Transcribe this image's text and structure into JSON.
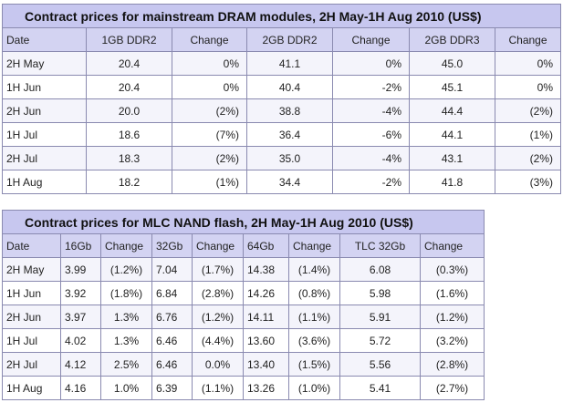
{
  "dram": {
    "title": "Contract prices for mainstream DRAM modules, 2H May-1H Aug 2010 (US$)",
    "headers": [
      "Date",
      "1GB DDR2",
      "Change",
      "2GB DDR2",
      "Change",
      "2GB DDR3",
      "Change"
    ],
    "rows": [
      [
        "2H May",
        "20.4",
        "0%",
        "41.1",
        "0%",
        "45.0",
        "0%"
      ],
      [
        "1H Jun",
        "20.4",
        "0%",
        "40.4",
        "-2%",
        "45.1",
        "0%"
      ],
      [
        "2H Jun",
        "20.0",
        "(2%)",
        "38.8",
        "-4%",
        "44.4",
        "(2%)"
      ],
      [
        "1H Jul",
        "18.6",
        "(7%)",
        "36.4",
        "-6%",
        "44.1",
        "(1%)"
      ],
      [
        "2H Jul",
        "18.3",
        "(2%)",
        "35.0",
        "-4%",
        "43.1",
        "(2%)"
      ],
      [
        "1H Aug",
        "18.2",
        "(1%)",
        "34.4",
        "-2%",
        "41.8",
        "(3%)"
      ]
    ]
  },
  "nand": {
    "title": "Contract prices for MLC NAND flash, 2H May-1H Aug 2010 (US$)",
    "headers": [
      "Date",
      "16Gb",
      "Change",
      "32Gb",
      "Change",
      "64Gb",
      "Change",
      "TLC 32Gb",
      "Change"
    ],
    "rows": [
      [
        "2H May",
        "3.99",
        "(1.2%)",
        "7.04",
        "(1.7%)",
        "14.38",
        "(1.4%)",
        "6.08",
        "(0.3%)"
      ],
      [
        "1H Jun",
        "3.92",
        "(1.8%)",
        "6.84",
        "(2.8%)",
        "14.26",
        "(0.8%)",
        "5.98",
        "(1.6%)"
      ],
      [
        "2H Jun",
        "3.97",
        "1.3%",
        "6.76",
        "(1.2%)",
        "14.11",
        "(1.1%)",
        "5.91",
        "(1.2%)"
      ],
      [
        "1H Jul",
        "4.02",
        "1.3%",
        "6.46",
        "(4.4%)",
        "13.60",
        "(3.6%)",
        "5.72",
        "(3.2%)"
      ],
      [
        "2H Jul",
        "4.12",
        "2.5%",
        "6.46",
        "0.0%",
        "13.40",
        "(1.5%)",
        "5.56",
        "(2.8%)"
      ],
      [
        "1H Aug",
        "4.16",
        "1.0%",
        "6.39",
        "(1.1%)",
        "13.26",
        "(1.0%)",
        "5.41",
        "(2.7%)"
      ]
    ]
  }
}
